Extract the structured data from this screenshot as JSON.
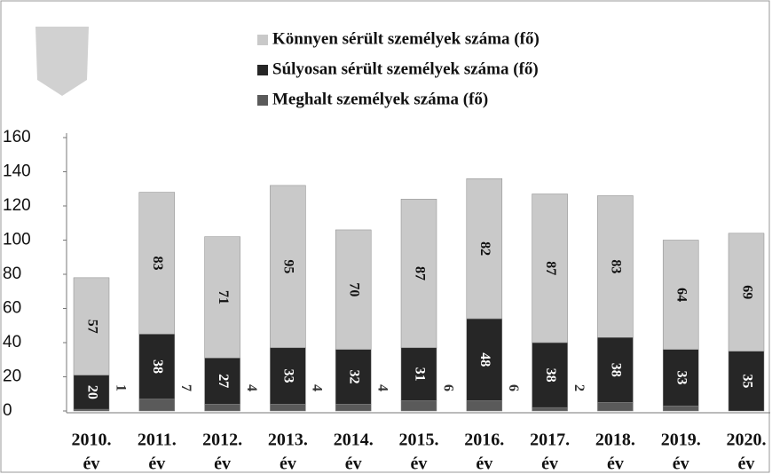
{
  "chart_data": {
    "type": "stacked_bar",
    "categories": [
      "2010.",
      "2011.",
      "2012.",
      "2013.",
      "2014.",
      "2015.",
      "2016.",
      "2017.",
      "2018.",
      "2019.",
      "2020."
    ],
    "category_suffix": "év",
    "series": [
      {
        "name": "Könnyen sérült személyek száma (fő)",
        "color": "#c9c9c9",
        "values": [
          57,
          83,
          71,
          95,
          70,
          87,
          82,
          87,
          83,
          64,
          69
        ]
      },
      {
        "name": "Súlyosan sérült személyek száma (fő)",
        "color": "#262626",
        "values": [
          20,
          38,
          27,
          33,
          32,
          31,
          48,
          38,
          38,
          33,
          35
        ]
      },
      {
        "name": "Meghalt személyek száma (fő)",
        "color": "#5a5a5a",
        "values": [
          1,
          7,
          4,
          4,
          4,
          6,
          6,
          2,
          5,
          3,
          0
        ],
        "value_labels": [
          1,
          7,
          4,
          4,
          4,
          6,
          6,
          2,
          null,
          null,
          null
        ]
      }
    ],
    "ylim": [
      0,
      160
    ],
    "yticks": [
      0,
      20,
      40,
      60,
      80,
      100,
      120,
      140,
      160
    ]
  }
}
